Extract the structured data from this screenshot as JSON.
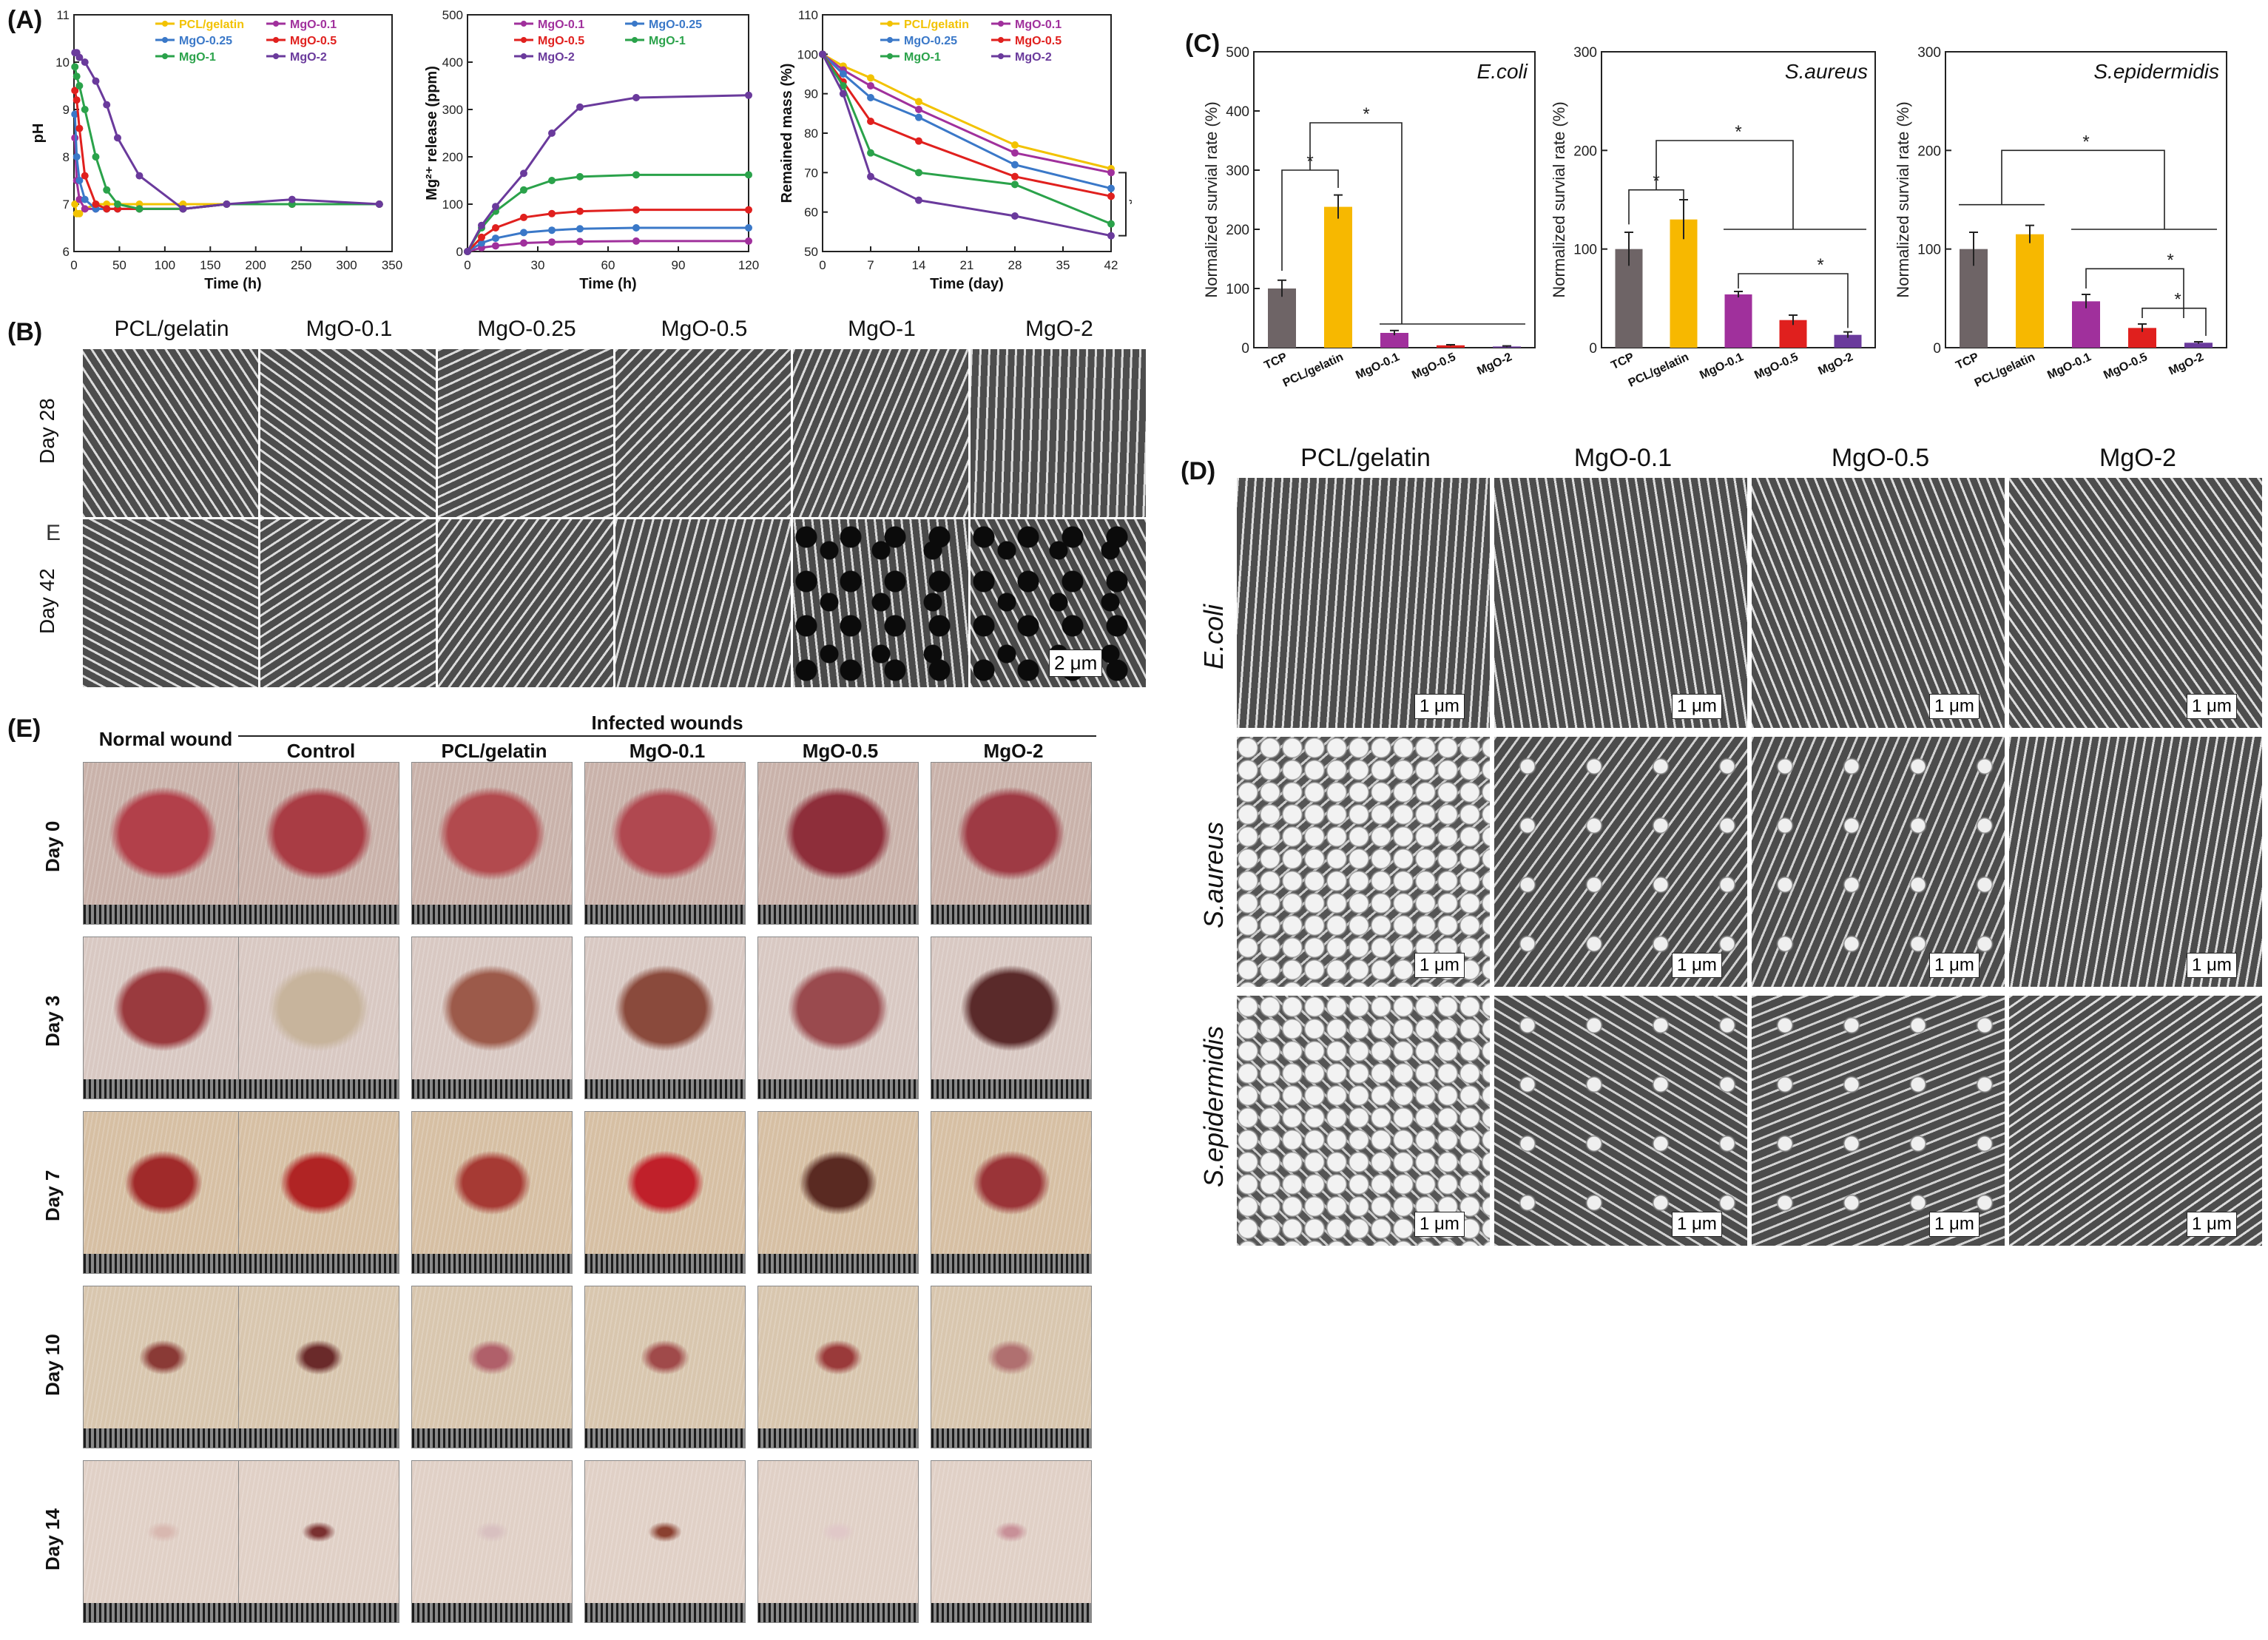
{
  "panels": {
    "A": "(A)",
    "B": "(B)",
    "C": "(C)",
    "D": "(D)",
    "E": "(E)"
  },
  "colors": {
    "pcl": "#f2c200",
    "mgo01": "#a0309c",
    "mgo025": "#3a78c8",
    "mgo05": "#e0201e",
    "mgo1": "#2aa24a",
    "mgo2": "#6a3a9c",
    "tcp": "#6e6466",
    "pclbar": "#f7b800"
  },
  "chart_data": [
    {
      "id": "ph",
      "type": "line",
      "xlabel": "Time (h)",
      "ylabel": "pH",
      "xlim": [
        0,
        350
      ],
      "ylim": [
        6,
        11
      ],
      "xticks": [
        0,
        50,
        100,
        150,
        200,
        250,
        300,
        350
      ],
      "yticks": [
        6,
        7,
        8,
        9,
        10,
        11
      ],
      "x": [
        1,
        3,
        6,
        12,
        24,
        36,
        48,
        72,
        120,
        168,
        240,
        336
      ],
      "series": [
        {
          "name": "PCL/gelatin",
          "color": "#f2c200",
          "values": [
            7.0,
            6.8,
            6.8,
            6.9,
            7.0,
            7.0,
            7.0,
            7.0,
            7.0,
            7.0,
            7.0,
            7.0
          ]
        },
        {
          "name": "MgO-0.1",
          "color": "#a0309c",
          "values": [
            8.4,
            7.5,
            7.1,
            6.9,
            6.9,
            6.9,
            6.9,
            6.9,
            6.9,
            7.0,
            7.0,
            7.0
          ]
        },
        {
          "name": "MgO-0.25",
          "color": "#3a78c8",
          "values": [
            8.9,
            8.0,
            7.5,
            7.1,
            6.9,
            6.9,
            6.9,
            6.9,
            6.9,
            7.0,
            7.0,
            7.0
          ]
        },
        {
          "name": "MgO-0.5",
          "color": "#e0201e",
          "values": [
            9.4,
            9.2,
            8.6,
            7.6,
            7.0,
            6.9,
            6.9,
            6.9,
            6.9,
            7.0,
            7.0,
            7.0
          ]
        },
        {
          "name": "MgO-1",
          "color": "#2aa24a",
          "values": [
            9.9,
            9.7,
            9.5,
            9.0,
            8.0,
            7.3,
            7.0,
            6.9,
            6.9,
            7.0,
            7.0,
            7.0
          ]
        },
        {
          "name": "MgO-2",
          "color": "#6a3a9c",
          "values": [
            10.2,
            10.2,
            10.1,
            10.0,
            9.6,
            9.1,
            8.4,
            7.6,
            6.9,
            7.0,
            7.1,
            7.0
          ]
        }
      ]
    },
    {
      "id": "mg",
      "type": "line",
      "xlabel": "Time (h)",
      "ylabel": "Mg²⁺ release (ppm)",
      "xlim": [
        0,
        120
      ],
      "ylim": [
        0,
        500
      ],
      "xticks": [
        0,
        30,
        60,
        90,
        120
      ],
      "yticks": [
        0,
        100,
        200,
        300,
        400,
        500
      ],
      "x": [
        0,
        6,
        12,
        24,
        36,
        48,
        72,
        120
      ],
      "series": [
        {
          "name": "MgO-0.1",
          "color": "#a0309c",
          "values": [
            0,
            8,
            12,
            18,
            20,
            21,
            22,
            22
          ]
        },
        {
          "name": "MgO-0.25",
          "color": "#3a78c8",
          "values": [
            0,
            18,
            28,
            40,
            45,
            48,
            50,
            50
          ]
        },
        {
          "name": "MgO-0.5",
          "color": "#e0201e",
          "values": [
            0,
            30,
            50,
            72,
            80,
            85,
            88,
            88
          ]
        },
        {
          "name": "MgO-1",
          "color": "#2aa24a",
          "values": [
            0,
            50,
            85,
            130,
            150,
            158,
            162,
            162
          ]
        },
        {
          "name": "MgO-2",
          "color": "#6a3a9c",
          "values": [
            0,
            55,
            95,
            165,
            250,
            305,
            325,
            330
          ]
        }
      ]
    },
    {
      "id": "mass",
      "type": "line",
      "xlabel": "Time (day)",
      "ylabel": "Remained mass (%)",
      "xlim": [
        0,
        42
      ],
      "ylim": [
        50,
        110
      ],
      "xticks": [
        0,
        7,
        14,
        21,
        28,
        35,
        42
      ],
      "yticks": [
        50,
        60,
        70,
        80,
        90,
        100,
        110
      ],
      "annotation": "*",
      "x": [
        0,
        3,
        7,
        14,
        28,
        42
      ],
      "series": [
        {
          "name": "PCL/gelatin",
          "color": "#f2c200",
          "values": [
            100,
            97,
            94,
            88,
            77,
            71
          ]
        },
        {
          "name": "MgO-0.1",
          "color": "#a0309c",
          "values": [
            100,
            96,
            92,
            86,
            75,
            70
          ]
        },
        {
          "name": "MgO-0.25",
          "color": "#3a78c8",
          "values": [
            100,
            95,
            89,
            84,
            72,
            66
          ]
        },
        {
          "name": "MgO-0.5",
          "color": "#e0201e",
          "values": [
            100,
            93,
            83,
            78,
            69,
            64
          ]
        },
        {
          "name": "MgO-1",
          "color": "#2aa24a",
          "values": [
            100,
            92,
            75,
            70,
            67,
            57
          ]
        },
        {
          "name": "MgO-2",
          "color": "#6a3a9c",
          "values": [
            100,
            90,
            69,
            63,
            59,
            54
          ]
        }
      ]
    },
    {
      "id": "ecoli",
      "type": "bar",
      "title": "E.coli",
      "ylabel": "Normalized survial rate (%)",
      "ylim": [
        0,
        500
      ],
      "yticks": [
        "0",
        "100",
        "200",
        "300",
        "400",
        "500"
      ],
      "top_tick_label": "500",
      "categories": [
        "TCP",
        "PCL/gelatin",
        "MgO-0.1",
        "MgO-0.5",
        "MgO-2"
      ],
      "values": [
        100,
        238,
        25,
        4,
        2
      ],
      "errors": [
        14,
        20,
        4,
        1,
        1
      ],
      "bar_colors": [
        "#6e6466",
        "#f7b800",
        "#a0309c",
        "#e0201e",
        "#6a3a9c"
      ],
      "sig": "*"
    },
    {
      "id": "saureus",
      "type": "bar",
      "title": "S.aureus",
      "ylabel": "Normalized survial rate (%)",
      "ylim": [
        0,
        300
      ],
      "yticks": [
        "0",
        "100",
        "200",
        "300"
      ],
      "categories": [
        "TCP",
        "PCL/gelatin",
        "MgO-0.1",
        "MgO-0.5",
        "MgO-2"
      ],
      "values": [
        100,
        130,
        54,
        28,
        13
      ],
      "errors": [
        17,
        20,
        3,
        5,
        3
      ],
      "bar_colors": [
        "#6e6466",
        "#f7b800",
        "#a0309c",
        "#e0201e",
        "#6a3a9c"
      ],
      "sig": "*"
    },
    {
      "id": "sepi",
      "type": "bar",
      "title": "S.epidermidis",
      "ylabel": "Normalized survial rate (%)",
      "ylim": [
        0,
        300
      ],
      "yticks": [
        "0",
        "100",
        "200",
        "300"
      ],
      "categories": [
        "TCP",
        "PCL/gelatin",
        "MgO-0.1",
        "MgO-0.5",
        "MgO-2"
      ],
      "values": [
        100,
        115,
        47,
        20,
        5
      ],
      "errors": [
        17,
        9,
        7,
        4,
        1
      ],
      "bar_colors": [
        "#6e6466",
        "#f7b800",
        "#a0309c",
        "#e0201e",
        "#6a3a9c"
      ],
      "sig": "*"
    }
  ],
  "panelB": {
    "columns": [
      "PCL/gelatin",
      "MgO-0.1",
      "MgO-0.25",
      "MgO-0.5",
      "MgO-1",
      "MgO-2"
    ],
    "rows": [
      "Day 28",
      "Day 42"
    ],
    "scale_bar": "2 μm",
    "stray_mark": "E"
  },
  "panelD": {
    "columns": [
      "PCL/gelatin",
      "MgO-0.1",
      "MgO-0.5",
      "MgO-2"
    ],
    "rows": [
      "E.coli",
      "S.aureus",
      "S.epidermidis"
    ],
    "scale_bar": "1 μm"
  },
  "panelE": {
    "normal_header": "Normal wound",
    "infected_header": "Infected wounds",
    "columns": [
      "Control",
      "PCL/gelatin",
      "MgO-0.1",
      "MgO-0.5",
      "MgO-2"
    ],
    "rows": [
      "Day 0",
      "Day 3",
      "Day 7",
      "Day 10",
      "Day 14"
    ]
  }
}
